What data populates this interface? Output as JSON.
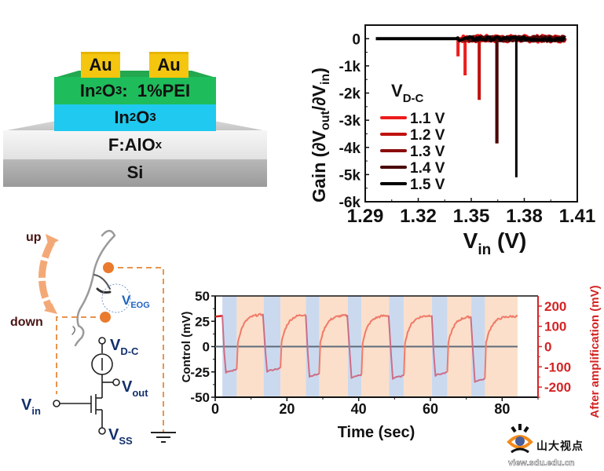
{
  "device_stack": {
    "electrodes": [
      "Au",
      "Au"
    ],
    "layers": [
      {
        "name": "In2O3: 1%PEI",
        "main": "In",
        "sub1": "2",
        "mid": "O",
        "sub2": "3",
        "tail": ":  1%PEI",
        "color": "#1fbc5b"
      },
      {
        "name": "In2O3",
        "main": "In",
        "sub1": "2",
        "mid": "O",
        "sub2": "3",
        "tail": "",
        "color": "#1fc9ef"
      },
      {
        "name": "F:AlOx",
        "main": "F:AlO",
        "sub1": "x",
        "color": "#eeeeee"
      },
      {
        "name": "Si",
        "main": "Si",
        "color": "#a8a8a8"
      }
    ]
  },
  "schematic": {
    "up_label": "up",
    "down_label": "down",
    "veog_label": {
      "main": "V",
      "sub": "EOG"
    },
    "vdc_label": {
      "main": "V",
      "sub": "D-C"
    },
    "vout_label": {
      "main": "V",
      "sub": "out"
    },
    "vin_label": {
      "main": "V",
      "sub": "in"
    },
    "vss_label": {
      "main": "V",
      "sub": "SS"
    },
    "colors": {
      "wire": "#e8944e",
      "electrode": "#ea7a2d",
      "label": "#13306b",
      "arrow": "#f3a977",
      "updown": "#4a1414"
    }
  },
  "chart_data": [
    {
      "type": "line",
      "title": "",
      "xlabel": "V_in (V)",
      "xlabel_main": "V",
      "xlabel_sub": "in",
      "xlabel_tail": " (V)",
      "ylabel": "Gain (∂Vout/∂Vin)",
      "ylabel_parts": {
        "a": "Gain (∂V",
        "b": "out",
        "c": "/∂V",
        "d": "in",
        "e": ")"
      },
      "xlim": [
        1.29,
        1.41
      ],
      "ylim": [
        -6000,
        500
      ],
      "xticks": [
        1.29,
        1.32,
        1.35,
        1.38,
        1.41
      ],
      "xtick_labels": [
        "1.29",
        "1.32",
        "1.35",
        "1.38",
        "1.41"
      ],
      "yticks": [
        0,
        -1000,
        -2000,
        -3000,
        -4000,
        -5000,
        -6000
      ],
      "ytick_labels": [
        "0",
        "-1k",
        "-2k",
        "-3k",
        "-4k",
        "-5k",
        "-6k"
      ],
      "legend_title": {
        "main": "V",
        "sub": "D-C"
      },
      "legend_position": "center-left",
      "series": [
        {
          "name": "1.1 V",
          "color": "#ee1c1c",
          "x_start": 1.342,
          "x_end": 1.403,
          "baseline_x_start": 1.342,
          "peak_x": 1.3465,
          "peak_y": -1350,
          "pre_dip_x": 1.3425,
          "pre_dip_y": -650
        },
        {
          "name": "1.2 V",
          "color": "#c0120f",
          "x_start": 1.344,
          "x_end": 1.403,
          "peak_x": 1.3545,
          "peak_y": -2250
        },
        {
          "name": "1.3 V",
          "color": "#8a0d0d",
          "x_start": 1.346,
          "x_end": 1.403,
          "peak_x": 1.3645,
          "peak_y": -3850
        },
        {
          "name": "1.4 V",
          "color": "#4a0707",
          "x_start": 1.348,
          "x_end": 1.403,
          "peak_x": 1.3645,
          "peak_y": -3850
        },
        {
          "name": "1.5 V",
          "color": "#000000",
          "x_start": 1.296,
          "x_end": 1.403,
          "peak_x": 1.3755,
          "peak_y": -5100
        }
      ]
    },
    {
      "type": "line",
      "title": "",
      "xlabel": "Time (sec)",
      "ylabel_left": "Control (mV)",
      "ylabel_right": "After amplification (mV)",
      "xlim": [
        0,
        90
      ],
      "ylim_left": [
        -50,
        50
      ],
      "ylim_right": [
        -250,
        250
      ],
      "xticks": [
        0,
        20,
        40,
        60,
        80
      ],
      "xtick_labels": [
        "0",
        "20",
        "40",
        "60",
        "80"
      ],
      "yticks_left": [
        50,
        25,
        0,
        -25,
        -50
      ],
      "ytick_labels_left": [
        "50",
        "25",
        "0",
        "-25",
        "-50"
      ],
      "yticks_right": [
        200,
        100,
        0,
        -100,
        -200
      ],
      "ytick_labels_right": [
        "200",
        "100",
        "0",
        "-100",
        "-200"
      ],
      "shaded_regions": [
        {
          "state": "down",
          "start": 2,
          "end": 6,
          "color": "#cbd9ef"
        },
        {
          "state": "up",
          "start": 6,
          "end": 13.5,
          "color": "#fbdfca"
        },
        {
          "state": "down",
          "start": 13.5,
          "end": 18.2,
          "color": "#cbd9ef"
        },
        {
          "state": "up",
          "start": 18.2,
          "end": 25.3,
          "color": "#fbdfca"
        },
        {
          "state": "down",
          "start": 25.3,
          "end": 29,
          "color": "#cbd9ef"
        },
        {
          "state": "up",
          "start": 29,
          "end": 37,
          "color": "#fbdfca"
        },
        {
          "state": "down",
          "start": 37,
          "end": 40.8,
          "color": "#cbd9ef"
        },
        {
          "state": "up",
          "start": 40.8,
          "end": 48.5,
          "color": "#fbdfca"
        },
        {
          "state": "down",
          "start": 48.5,
          "end": 52.6,
          "color": "#cbd9ef"
        },
        {
          "state": "up",
          "start": 52.6,
          "end": 60.4,
          "color": "#fbdfca"
        },
        {
          "state": "down",
          "start": 60.4,
          "end": 64.7,
          "color": "#cbd9ef"
        },
        {
          "state": "up",
          "start": 64.7,
          "end": 71.4,
          "color": "#fbdfca"
        },
        {
          "state": "down",
          "start": 71.4,
          "end": 75.2,
          "color": "#cbd9ef"
        },
        {
          "state": "up",
          "start": 75.2,
          "end": 84.3,
          "color": "#fbdfca"
        }
      ],
      "series": [
        {
          "name": "Control",
          "axis": "left",
          "color": "#5d6a7a",
          "x": [
            0,
            84.3
          ],
          "y": [
            0,
            0
          ]
        },
        {
          "name": "After amplification",
          "axis": "right",
          "color_up": "#f07a68",
          "color_down": "#cc6d84",
          "cycles": [
            {
              "drop_t": 2,
              "rise_t": 6,
              "low": -130,
              "high": 155
            },
            {
              "drop_t": 13.5,
              "rise_t": 18.2,
              "low": -125,
              "high": 160
            },
            {
              "drop_t": 25.3,
              "rise_t": 29,
              "low": -150,
              "high": 160
            },
            {
              "drop_t": 37,
              "rise_t": 40.8,
              "low": -155,
              "high": 155
            },
            {
              "drop_t": 48.5,
              "rise_t": 52.6,
              "low": -160,
              "high": 155
            },
            {
              "drop_t": 60.4,
              "rise_t": 64.7,
              "low": -145,
              "high": 155
            },
            {
              "drop_t": 71.4,
              "rise_t": 75.2,
              "low": -175,
              "high": 150
            }
          ],
          "start_level": 148,
          "end_level": 150,
          "end_t": 84.3
        }
      ]
    }
  ],
  "watermark": {
    "site_name": "山大视点",
    "url": "view.sdu.edu.cn"
  }
}
